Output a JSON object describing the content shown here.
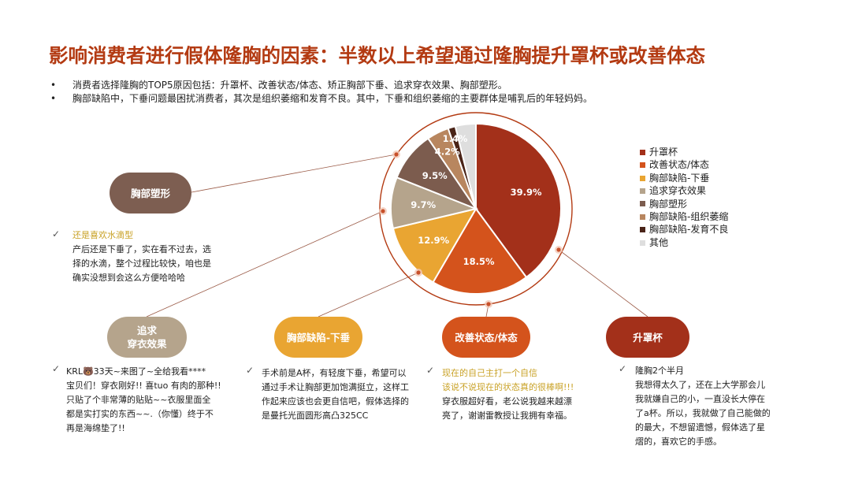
{
  "title": "影响消费者进行假体隆胸的因素：半数以上希望通过隆胸提升罩杯或改善体态",
  "bullets": [
    "消费者选择隆胸的TOP5原因包括：升罩杯、改善状态/体态、矫正胸部下垂、追求穿衣效果、胸部塑形。",
    "胸部缺陷中，下垂问题最困扰消费者，其次是组织萎缩和发育不良。其中，下垂和组织萎缩的主要群体是哺乳后的年轻妈妈。"
  ],
  "bullet_marker": "•",
  "chart_data": {
    "type": "pie",
    "categories": [
      "升罩杯",
      "改善状态/体态",
      "胸部缺陷-下垂",
      "追求穿衣效果",
      "胸部塑形",
      "胸部缺陷-组织萎缩",
      "胸部缺陷-发育不良",
      "其他"
    ],
    "values": [
      39.9,
      18.5,
      12.9,
      9.7,
      9.5,
      4.2,
      1.4,
      3.9
    ],
    "labels": [
      "39.9%",
      "18.5%",
      "12.9%",
      "9.7%",
      "9.5%",
      "4.2%",
      "1.4%",
      ""
    ],
    "colors": [
      "#a3301a",
      "#d4531c",
      "#e9a532",
      "#b5a48c",
      "#7c5c4e",
      "#b8865f",
      "#4a2418",
      "#dedede"
    ],
    "legend_position": "right"
  },
  "pills": [
    {
      "label": "胸部塑形",
      "color": "#7d5e51"
    },
    {
      "label": "追求\n穿衣效果",
      "color": "#b5a48c"
    },
    {
      "label": "胸部缺陷-下垂",
      "color": "#e9a532"
    },
    {
      "label": "改善状态/体态",
      "color": "#d4531c"
    },
    {
      "label": "升罩杯",
      "color": "#a3301a"
    }
  ],
  "check_mark": "✓",
  "quotes": {
    "q1": [
      "还是喜欢水滴型",
      "产后还是下垂了，实在看不过去，选",
      "择的水滴，整个过程比较快，咱也是",
      "确实没想到会这么方便哈哈哈"
    ],
    "q2": [
      "KRL🐻33天~来图了~全给我看****",
      "宝贝们！穿衣刚好!! 喜tuo 有肉的那种!!",
      "只贴了个非常薄的贴贴~~衣服里面全",
      "都是实打实的东西~~.（你懂）终于不",
      "再是海绵垫了!!"
    ],
    "q3": [
      "手术前是A杯，有轻度下垂，希望可以",
      "通过手术让胸部更加饱满挺立，这样工",
      "作起来应该也会更自信吧，假体选择的",
      "是曼托光面圆形高凸325CC"
    ],
    "q4": [
      "现在的自己主打一个自信",
      "该说不说现在的状态真的很棒啊!!!",
      "穿衣服超好看，老公说我越来越漂",
      "亮了，谢谢雷教授让我拥有幸福。"
    ],
    "q5": [
      "隆胸2个半月",
      "我想得太久了，还在上大学那会儿",
      "我就嫌自己的小，一直没长大停在",
      "了a杯。所以，我就做了自己能做的",
      "的最大，不想留遗憾，假体选了星",
      "熠的，喜欢它的手感。"
    ]
  }
}
